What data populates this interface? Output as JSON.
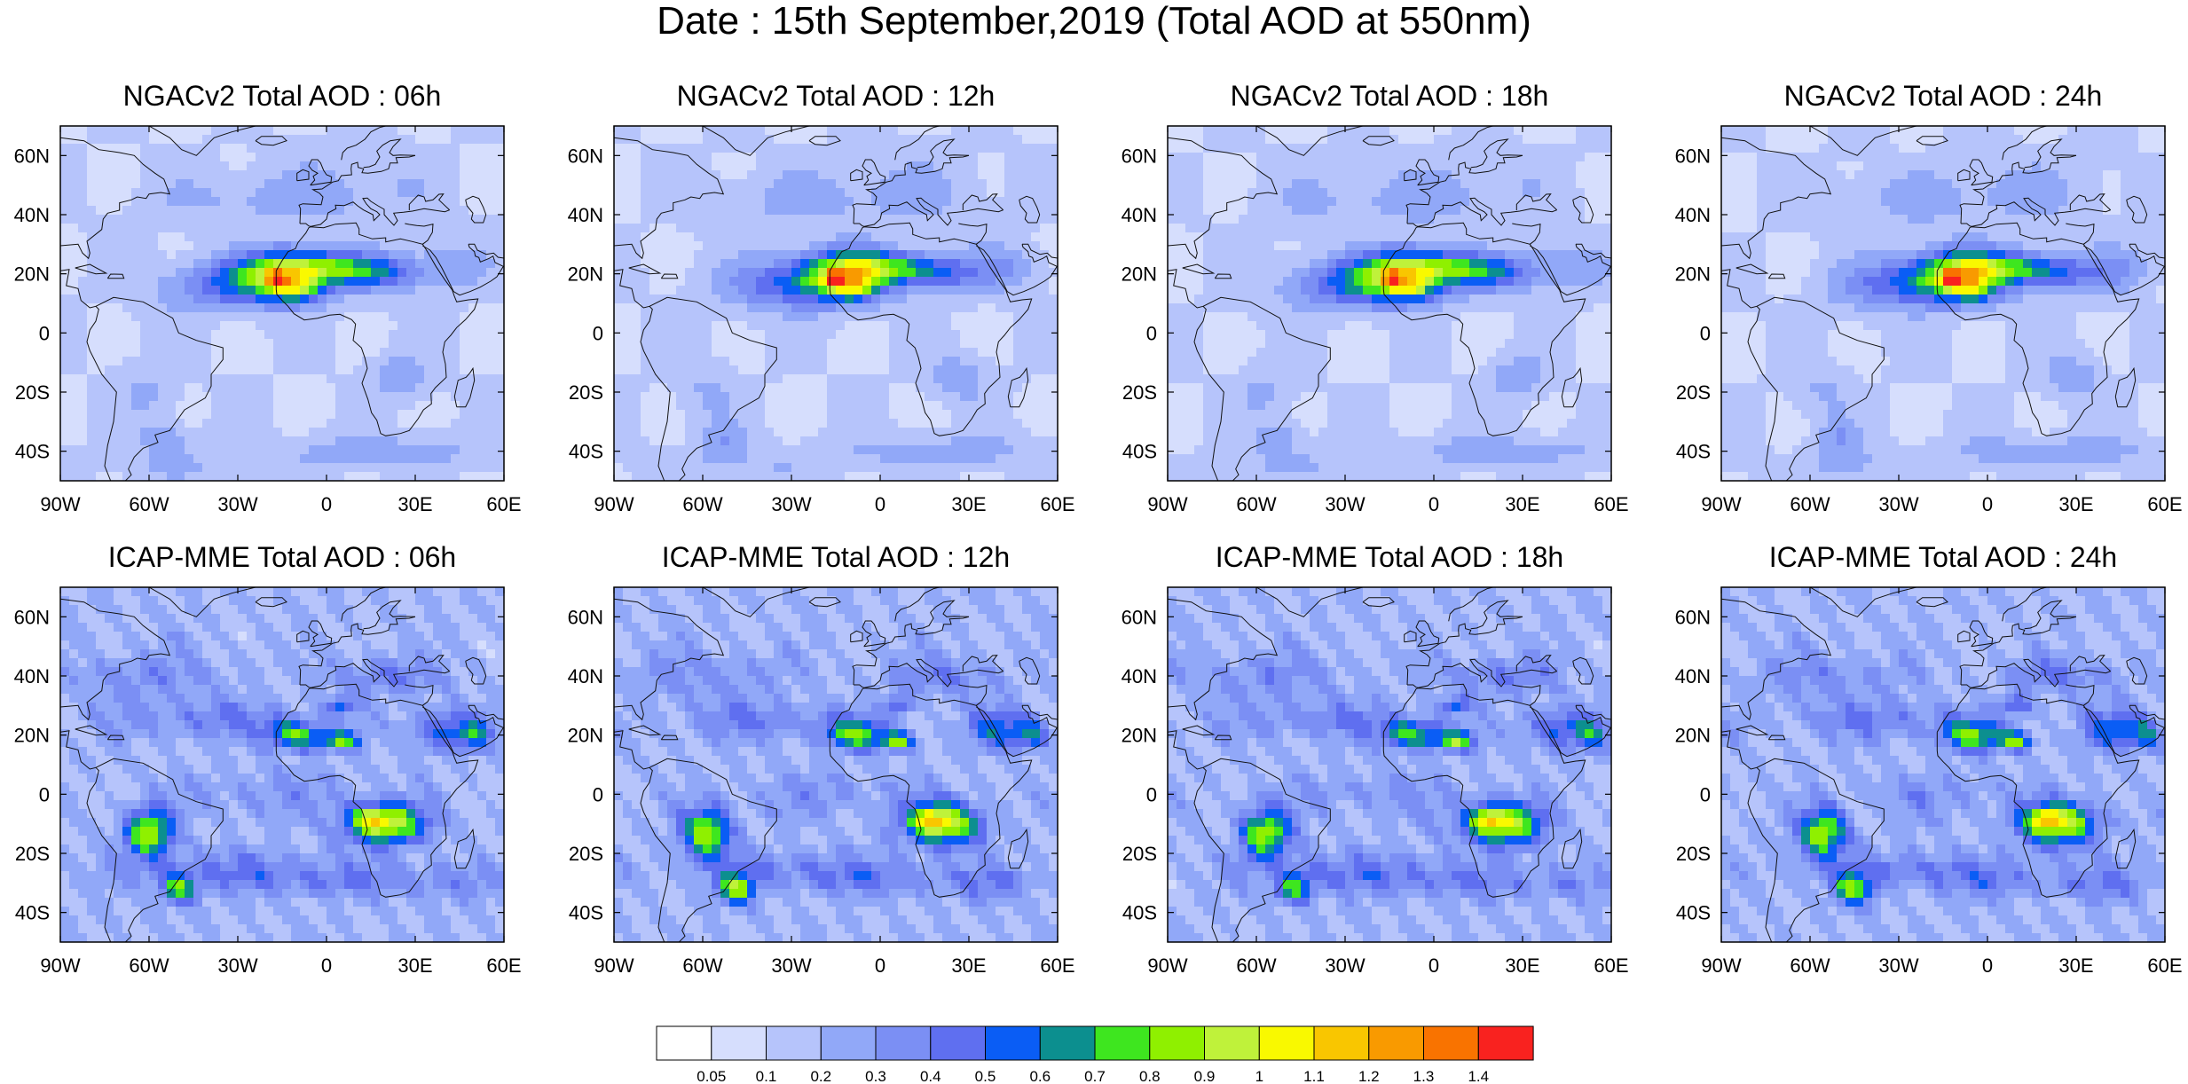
{
  "title": "Date : 15th September,2019 (Total AOD at 550nm)",
  "colors": {
    "land_outline": "#111111",
    "ocean_tint": "#e8eefe",
    "palette": [
      "#ffffff",
      "#d6defd",
      "#b6c4fb",
      "#91a8f8",
      "#7b8ff4",
      "#5f6ff0",
      "#0a5df5",
      "#0c8f8f",
      "#3ee61f",
      "#8ff000",
      "#bff23a",
      "#f9f900",
      "#f9c600",
      "#f99a00",
      "#f97300",
      "#f9221f"
    ]
  },
  "panels": [
    {
      "title": "NGACv2 Total AOD : 06h",
      "model": "NGAC",
      "hour": 6
    },
    {
      "title": "NGACv2 Total AOD : 12h",
      "model": "NGAC",
      "hour": 12
    },
    {
      "title": "NGACv2 Total AOD : 18h",
      "model": "NGAC",
      "hour": 18
    },
    {
      "title": "NGACv2 Total AOD : 24h",
      "model": "NGAC",
      "hour": 24
    },
    {
      "title": "ICAP-MME Total AOD : 06h",
      "model": "ICAP",
      "hour": 6
    },
    {
      "title": "ICAP-MME Total AOD : 12h",
      "model": "ICAP",
      "hour": 12
    },
    {
      "title": "ICAP-MME Total AOD : 18h",
      "model": "ICAP",
      "hour": 18
    },
    {
      "title": "ICAP-MME Total AOD : 24h",
      "model": "ICAP",
      "hour": 24
    }
  ],
  "axes": {
    "lon_range": [
      -90,
      60
    ],
    "lat_range": [
      -50,
      70
    ],
    "x_ticks": [
      {
        "value": -90,
        "label": "90W"
      },
      {
        "value": -60,
        "label": "60W"
      },
      {
        "value": -30,
        "label": "30W"
      },
      {
        "value": 0,
        "label": "0"
      },
      {
        "value": 30,
        "label": "30E"
      },
      {
        "value": 60,
        "label": "60E"
      }
    ],
    "y_ticks": [
      {
        "value": 60,
        "label": "60N"
      },
      {
        "value": 40,
        "label": "40N"
      },
      {
        "value": 20,
        "label": "20N"
      },
      {
        "value": 0,
        "label": "0"
      },
      {
        "value": -20,
        "label": "20S"
      },
      {
        "value": -40,
        "label": "40S"
      }
    ]
  },
  "colorbar": {
    "labels": [
      "0.05",
      "0.1",
      "0.2",
      "0.3",
      "0.4",
      "0.5",
      "0.6",
      "0.7",
      "0.8",
      "0.9",
      "1",
      "1.1",
      "1.2",
      "1.3",
      "1.4"
    ]
  }
}
